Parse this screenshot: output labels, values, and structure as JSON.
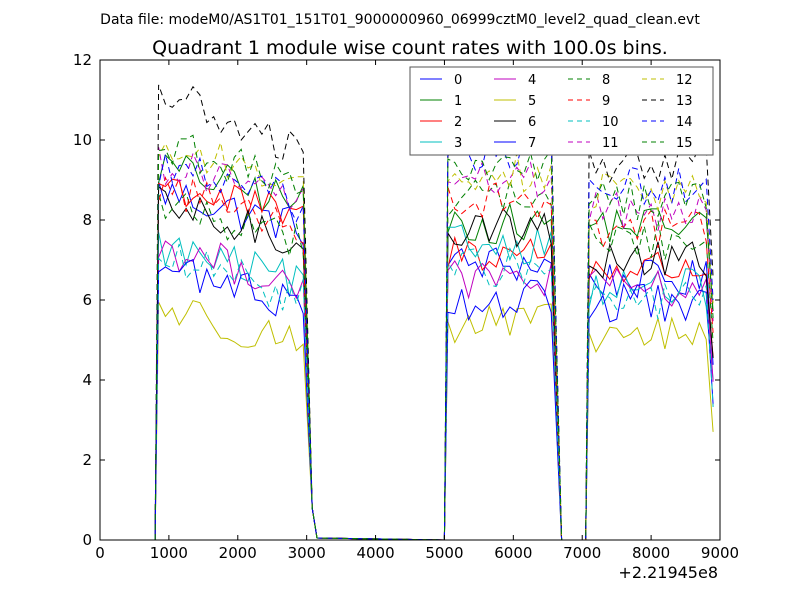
{
  "header": {
    "datafile": "Data file: modeM0/AS1T01_151T01_9000000960_06999cztM0_level2_quad_clean.evt"
  },
  "chart_data": {
    "type": "line",
    "title": "Quadrant 1 module wise count rates with 100.0s bins.",
    "xlabel": "",
    "ylabel": "",
    "x_offset_label": "+2.21945e8",
    "xlim": [
      0,
      9000
    ],
    "ylim": [
      0,
      12
    ],
    "xticks": [
      0,
      1000,
      2000,
      3000,
      4000,
      5000,
      6000,
      7000,
      8000,
      9000
    ],
    "yticks": [
      0,
      2,
      4,
      6,
      8,
      10,
      12
    ],
    "grid": false,
    "legend_position": "top-right",
    "legend_columns": 4,
    "segments": [
      {
        "t0": 850,
        "n": 22,
        "drop": [
          3080,
          3150,
          3250
        ]
      },
      {
        "t0": 5050,
        "n": 16,
        "drop": [
          6600,
          6750
        ]
      },
      {
        "t0": 7100,
        "n": 18,
        "drop": [
          8900
        ]
      }
    ],
    "zero_stretch": [
      [
        3250,
        5000
      ],
      [
        6750,
        7050
      ]
    ],
    "series": [
      {
        "name": "0",
        "color": "#0000ff",
        "dash": "solid",
        "levels": [
          7.9,
          6.9,
          6.5
        ]
      },
      {
        "name": "1",
        "color": "#008000",
        "dash": "solid",
        "levels": [
          8.5,
          7.9,
          7.9
        ]
      },
      {
        "name": "2",
        "color": "#ff0000",
        "dash": "solid",
        "levels": [
          8.1,
          7.2,
          6.8
        ]
      },
      {
        "name": "3",
        "color": "#00bfbf",
        "dash": "solid",
        "levels": [
          6.5,
          7.4,
          6.3
        ]
      },
      {
        "name": "4",
        "color": "#bf00bf",
        "dash": "solid",
        "levels": [
          6.5,
          6.5,
          6.3
        ]
      },
      {
        "name": "5",
        "color": "#bfbf00",
        "dash": "solid",
        "levels": [
          5.0,
          5.4,
          5.1
        ]
      },
      {
        "name": "6",
        "color": "#000000",
        "dash": "solid",
        "levels": [
          7.5,
          7.8,
          7.0
        ]
      },
      {
        "name": "7",
        "color": "#0000ff",
        "dash": "solid",
        "levels": [
          6.0,
          6.0,
          5.9
        ]
      },
      {
        "name": "8",
        "color": "#008000",
        "dash": "dashed",
        "levels": [
          7.6,
          8.6,
          7.5
        ]
      },
      {
        "name": "9",
        "color": "#ff0000",
        "dash": "dashed",
        "levels": [
          8.0,
          8.5,
          7.8
        ]
      },
      {
        "name": "10",
        "color": "#00bfbf",
        "dash": "dashed",
        "levels": [
          6.2,
          6.8,
          6.0
        ]
      },
      {
        "name": "11",
        "color": "#bf00bf",
        "dash": "dashed",
        "levels": [
          8.6,
          9.0,
          8.2
        ]
      },
      {
        "name": "12",
        "color": "#bfbf00",
        "dash": "dashed",
        "levels": [
          9.0,
          9.2,
          8.7
        ]
      },
      {
        "name": "13",
        "color": "#000000",
        "dash": "dashed",
        "levels": [
          9.8,
          10.0,
          9.4
        ]
      },
      {
        "name": "14",
        "color": "#0000ff",
        "dash": "dashed",
        "levels": [
          8.5,
          9.6,
          8.9
        ]
      },
      {
        "name": "15",
        "color": "#008000",
        "dash": "dashed",
        "levels": [
          9.0,
          9.3,
          8.5
        ]
      }
    ]
  }
}
